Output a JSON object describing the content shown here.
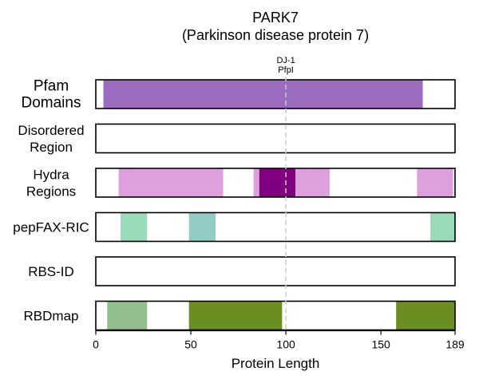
{
  "chart_data": {
    "type": "bar",
    "title": "PARK7",
    "subtitle": "(Parkinson disease protein 7)",
    "xlabel": "Protein Length",
    "xlim": [
      0,
      189
    ],
    "xticks": [
      0,
      50,
      100,
      150,
      189
    ],
    "xtick_labels": [
      "0",
      "50",
      "100",
      "150",
      "189"
    ],
    "reference_line": {
      "x": 100,
      "style": "dashed",
      "color": "#cccccc"
    },
    "annotation": {
      "lines": [
        "DJ-1",
        "PfpI"
      ],
      "x": 100
    },
    "tracks": [
      {
        "label_lines": [
          "Pfam",
          "Domains"
        ],
        "label_size": "large",
        "segments": [
          {
            "start": 4,
            "end": 172,
            "color": "#9b6bbd"
          }
        ]
      },
      {
        "label_lines": [
          "Disordered",
          "Region"
        ],
        "label_size": "normal",
        "segments": []
      },
      {
        "label_lines": [
          "Hydra",
          "Regions"
        ],
        "label_size": "normal",
        "segments": [
          {
            "start": 12,
            "end": 67,
            "color": "#dda0dd"
          },
          {
            "start": 83,
            "end": 86,
            "color": "#dda0dd"
          },
          {
            "start": 86,
            "end": 105,
            "color": "#800080"
          },
          {
            "start": 105,
            "end": 123,
            "color": "#dda0dd"
          },
          {
            "start": 169,
            "end": 188,
            "color": "#dda0dd"
          }
        ]
      },
      {
        "label_lines": [
          "pepFAX-RIC"
        ],
        "label_size": "normal",
        "segments": [
          {
            "start": 13,
            "end": 27,
            "color": "#99dbb9"
          },
          {
            "start": 49,
            "end": 63,
            "color": "#93cbc5"
          },
          {
            "start": 176,
            "end": 189,
            "color": "#99dbb9"
          }
        ]
      },
      {
        "label_lines": [
          "RBS-ID"
        ],
        "label_size": "normal",
        "segments": []
      },
      {
        "label_lines": [
          "RBDmap"
        ],
        "label_size": "normal",
        "segments": [
          {
            "start": 6,
            "end": 27,
            "color": "#93bf8e"
          },
          {
            "start": 49,
            "end": 98,
            "color": "#6b8e23"
          },
          {
            "start": 158,
            "end": 189,
            "color": "#6b8e23"
          }
        ]
      }
    ]
  }
}
